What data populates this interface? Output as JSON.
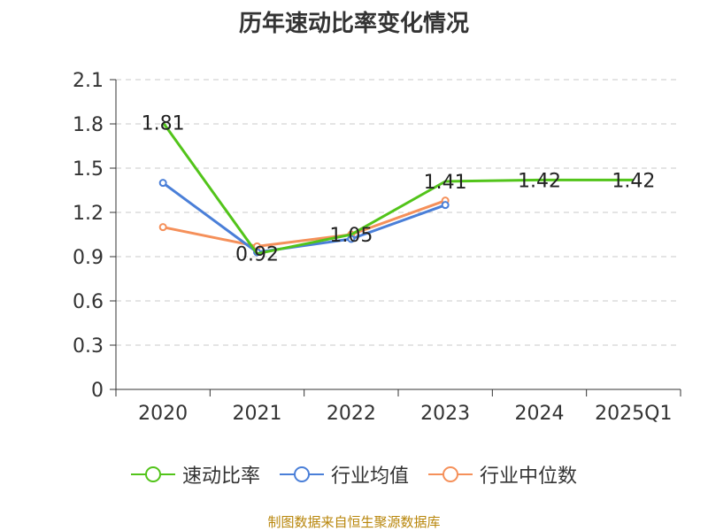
{
  "chart_data": {
    "type": "line",
    "title": "历年速动比率变化情况",
    "categories": [
      "2020",
      "2021",
      "2022",
      "2023",
      "2024",
      "2025Q1"
    ],
    "ylim": [
      0,
      2.1
    ],
    "yticks": [
      "0",
      "0.3",
      "0.6",
      "0.9",
      "1.2",
      "1.5",
      "1.8",
      "2.1"
    ],
    "grid": true,
    "legend_position": "bottom",
    "series": [
      {
        "name": "速动比率",
        "color": "#52c41a",
        "values": [
          1.81,
          0.92,
          1.05,
          1.41,
          1.42,
          1.42
        ],
        "data_labels": [
          "1.81",
          "0.92",
          "1.05",
          "1.41",
          "1.42",
          "1.42"
        ]
      },
      {
        "name": "行业均值",
        "color": "#4a7fd8",
        "values": [
          1.4,
          0.93,
          1.02,
          1.25,
          null,
          null
        ]
      },
      {
        "name": "行业中位数",
        "color": "#f5905a",
        "values": [
          1.1,
          0.97,
          1.05,
          1.28,
          null,
          null
        ]
      }
    ]
  },
  "source_text": "制图数据来自恒生聚源数据库"
}
